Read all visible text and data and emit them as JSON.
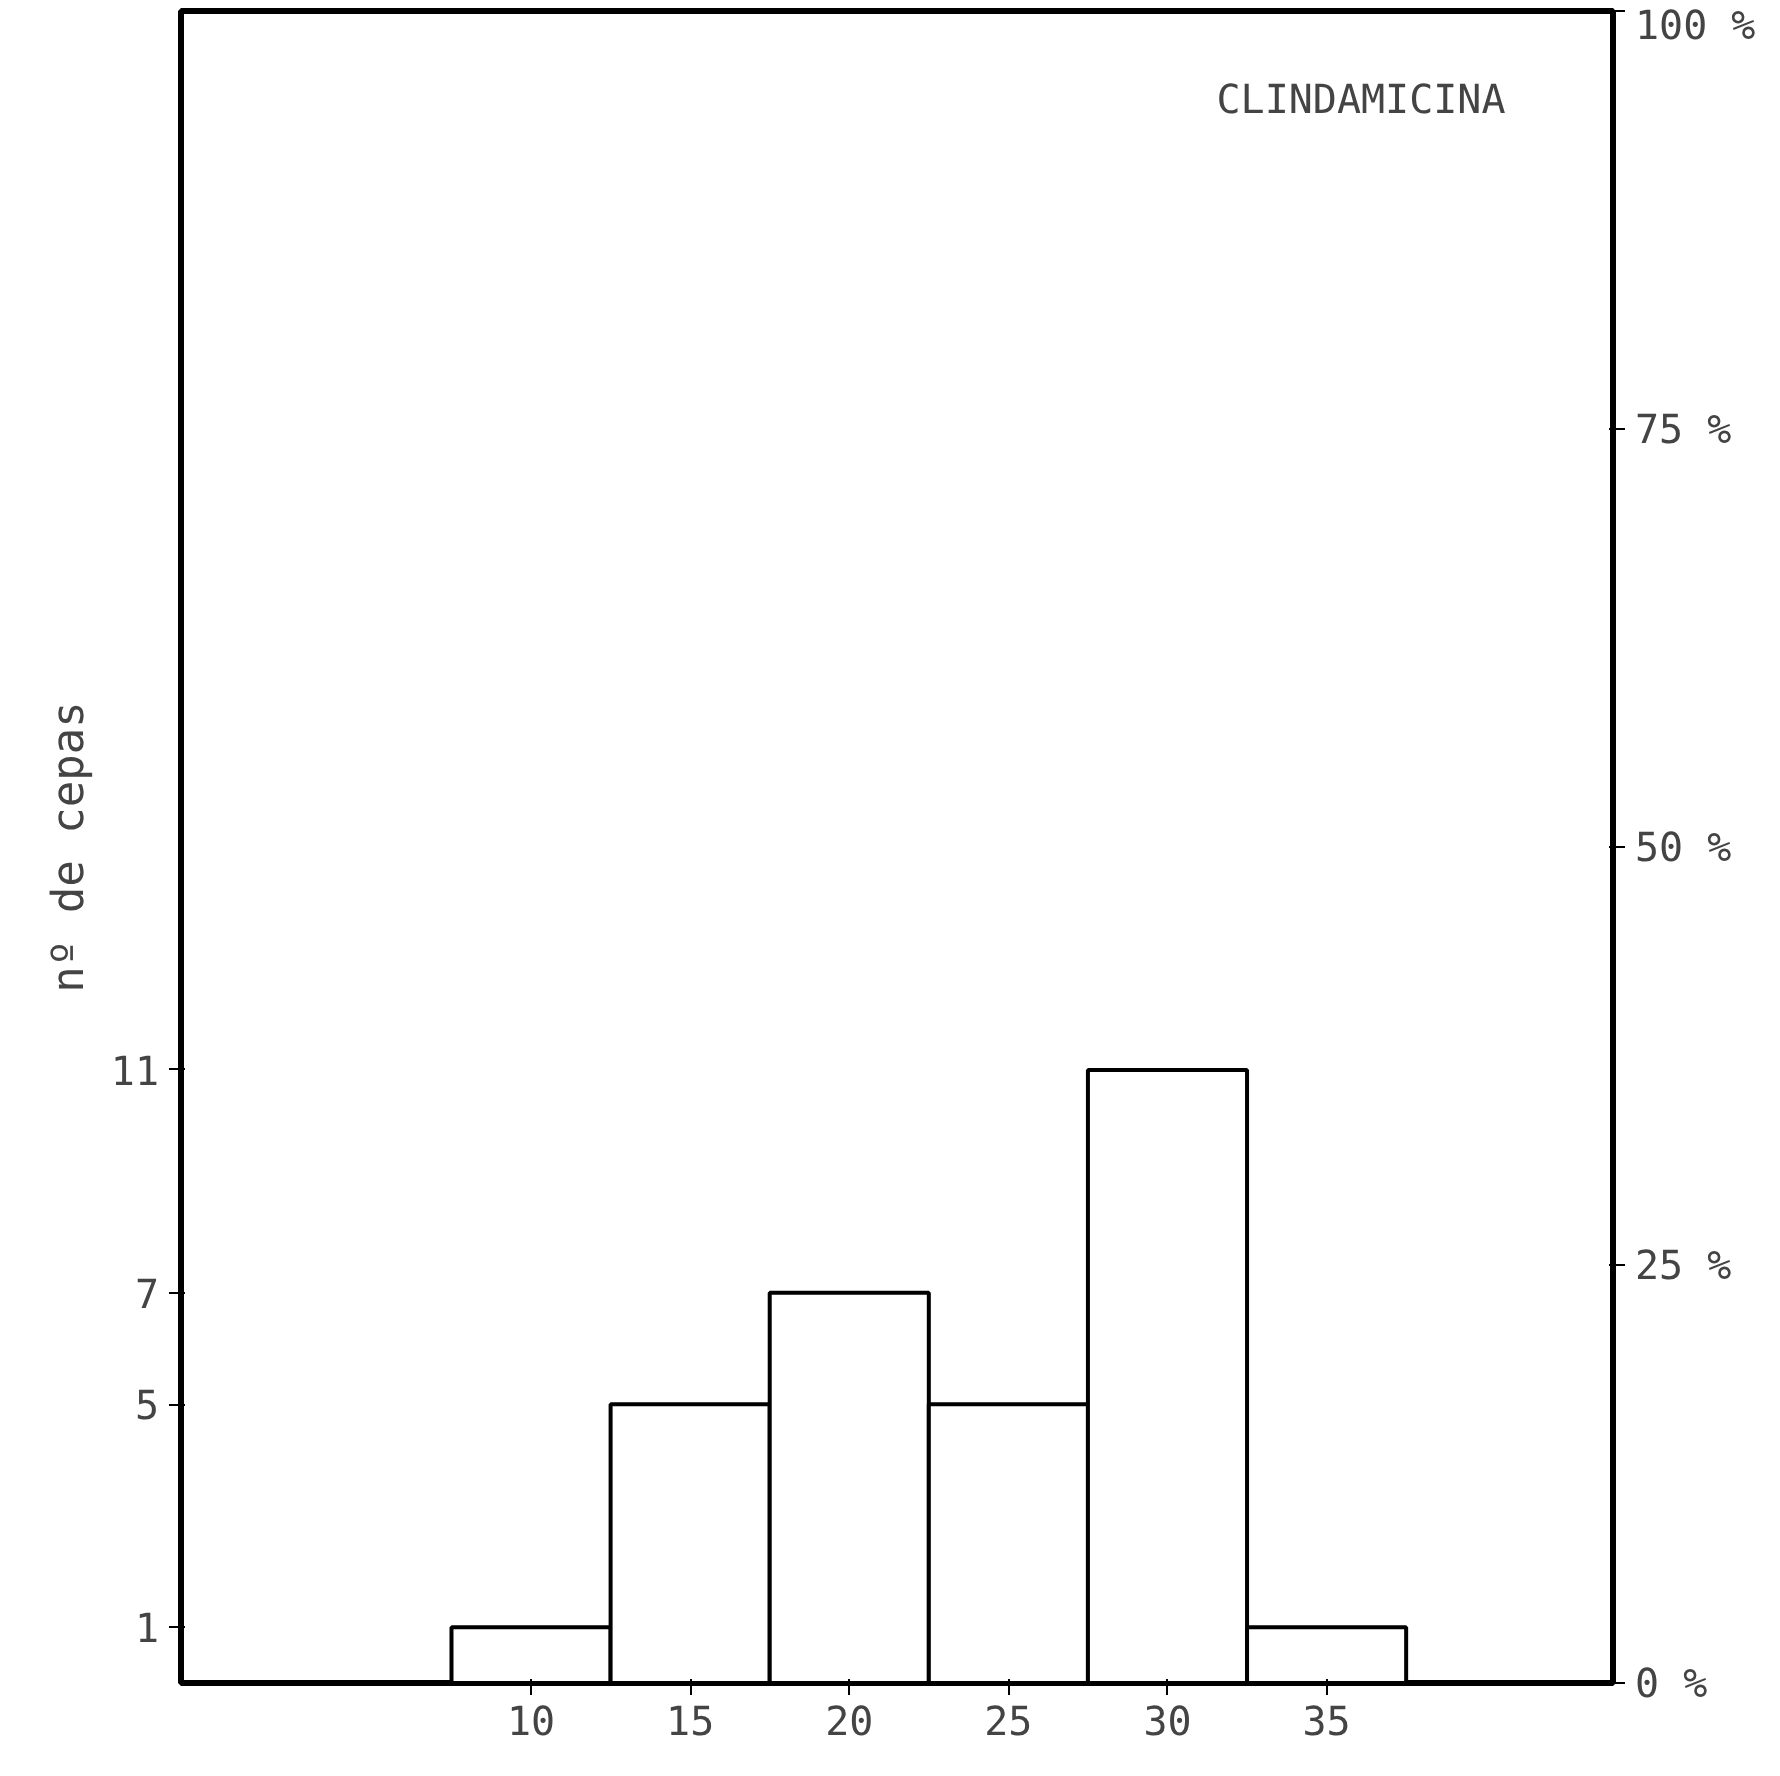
{
  "chart_data": {
    "type": "bar",
    "x": [
      10,
      15,
      20,
      25,
      30,
      35
    ],
    "values": [
      1,
      5,
      7,
      5,
      11,
      1
    ],
    "color": "#ffffff",
    "xlim": [
      -1,
      44
    ],
    "xticks": [
      10,
      15,
      20,
      25,
      30,
      35
    ],
    "ylim": [
      0,
      30
    ],
    "yticks": [
      1,
      5,
      7,
      11
    ],
    "y2lim": [
      0,
      100
    ],
    "y2ticks": [
      {
        "value": 0,
        "label": "0 %"
      },
      {
        "value": 25,
        "label": "25 %"
      },
      {
        "value": 50,
        "label": "50 %"
      },
      {
        "value": 75,
        "label": "75 %"
      },
      {
        "value": 100,
        "label": "100 %"
      }
    ],
    "ylabel": "nº de cepas",
    "annotations": [
      "CLINDAMICINA"
    ],
    "grid": false
  }
}
